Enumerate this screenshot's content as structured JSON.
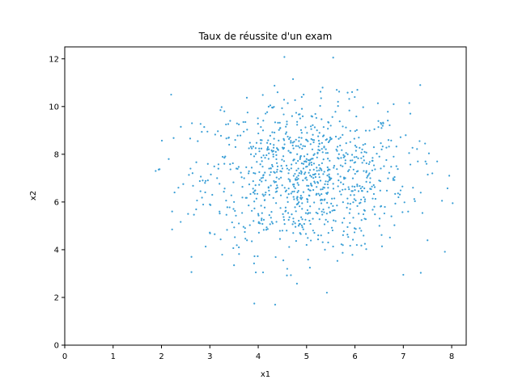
{
  "chart_data": {
    "type": "scatter",
    "title": "Taux de réussite d'un exam",
    "xlabel": "x1",
    "ylabel": "x2",
    "xlim": [
      0,
      8.3
    ],
    "ylim": [
      0,
      12.5
    ],
    "xticks": [
      "0",
      "1",
      "2",
      "3",
      "4",
      "5",
      "6",
      "7",
      "8"
    ],
    "yticks": [
      "0",
      "2",
      "4",
      "6",
      "8",
      "10",
      "12"
    ],
    "grid": false,
    "point_color": "#3a9fd6",
    "point_count_estimate": 1000,
    "points": [
      [
        1.88,
        7.3
      ],
      [
        2.15,
        7.8
      ],
      [
        2.2,
        10.5
      ],
      [
        2.22,
        4.85
      ],
      [
        2.27,
        6.4
      ],
      [
        2.35,
        6.6
      ],
      [
        2.4,
        9.15
      ],
      [
        2.45,
        6.75
      ],
      [
        2.55,
        5.5
      ],
      [
        2.62,
        3.7
      ],
      [
        2.63,
        9.3
      ],
      [
        2.75,
        8.55
      ],
      [
        2.95,
        8.95
      ],
      [
        3.05,
        6.3
      ],
      [
        3.1,
        4.65
      ],
      [
        3.15,
        7.0
      ],
      [
        3.22,
        9.85
      ],
      [
        3.3,
        9.8
      ],
      [
        3.42,
        9.4
      ],
      [
        3.5,
        3.35
      ],
      [
        3.6,
        4.1
      ],
      [
        3.7,
        8.95
      ],
      [
        3.78,
        9.75
      ],
      [
        3.85,
        8.0
      ],
      [
        3.95,
        3.05
      ],
      [
        4.1,
        3.05
      ],
      [
        4.25,
        10.05
      ],
      [
        4.3,
        9.95
      ],
      [
        4.35,
        1.7
      ],
      [
        4.4,
        10.6
      ],
      [
        4.45,
        4.45
      ],
      [
        4.6,
        3.2
      ],
      [
        4.72,
        11.15
      ],
      [
        4.9,
        10.4
      ],
      [
        5.1,
        9.6
      ],
      [
        5.3,
        10.35
      ],
      [
        5.42,
        2.2
      ],
      [
        5.55,
        12.05
      ],
      [
        5.65,
        10.2
      ],
      [
        5.85,
        8.0
      ],
      [
        6.05,
        10.7
      ],
      [
        6.2,
        5.3
      ],
      [
        6.55,
        9.1
      ],
      [
        6.8,
        10.1
      ],
      [
        7.0,
        2.95
      ],
      [
        7.05,
        8.8
      ],
      [
        7.12,
        8.05
      ],
      [
        7.3,
        7.7
      ],
      [
        7.35,
        10.9
      ],
      [
        7.45,
        8.45
      ],
      [
        7.6,
        7.2
      ],
      [
        7.7,
        7.7
      ],
      [
        7.8,
        6.05
      ],
      [
        7.95,
        7.1
      ],
      [
        8.02,
        5.95
      ],
      [
        3.5,
        6.0
      ],
      [
        3.8,
        7.2
      ],
      [
        4.0,
        5.5
      ],
      [
        4.2,
        8.3
      ],
      [
        4.4,
        6.6
      ],
      [
        4.6,
        7.4
      ],
      [
        4.8,
        5.9
      ],
      [
        5.0,
        7.8
      ],
      [
        5.2,
        6.3
      ],
      [
        5.4,
        8.6
      ],
      [
        5.6,
        5.2
      ],
      [
        5.8,
        7.0
      ],
      [
        6.0,
        6.5
      ],
      [
        6.2,
        8.1
      ],
      [
        6.4,
        5.8
      ],
      [
        6.6,
        7.5
      ],
      [
        3.3,
        7.6
      ],
      [
        3.6,
        5.1
      ],
      [
        4.1,
        9.0
      ],
      [
        4.5,
        4.8
      ],
      [
        4.9,
        8.9
      ],
      [
        5.3,
        4.6
      ],
      [
        5.7,
        8.7
      ],
      [
        6.1,
        4.9
      ],
      [
        6.5,
        6.9
      ],
      [
        6.9,
        6.2
      ],
      [
        7.1,
        5.6
      ],
      [
        3.2,
        5.6
      ],
      [
        3.4,
        8.4
      ],
      [
        2.9,
        6.8
      ],
      [
        2.6,
        7.4
      ],
      [
        3.0,
        5.9
      ],
      [
        6.8,
        7.9
      ],
      [
        7.2,
        6.6
      ],
      [
        5.0,
        4.2
      ],
      [
        4.7,
        9.6
      ],
      [
        5.5,
        9.2
      ],
      [
        4.3,
        5.1
      ],
      [
        5.9,
        5.7
      ],
      [
        6.3,
        7.2
      ],
      [
        3.9,
        6.4
      ]
    ]
  }
}
